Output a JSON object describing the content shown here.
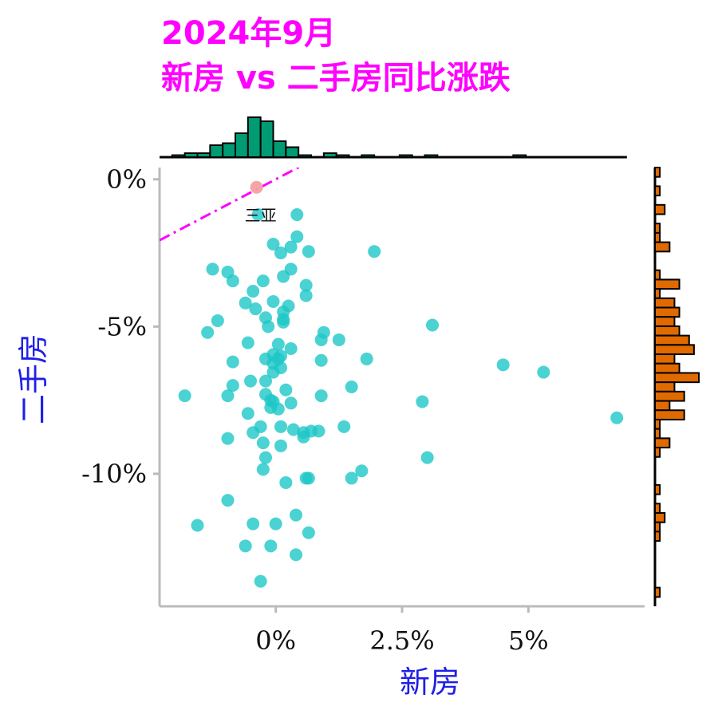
{
  "colors": {
    "title": "#ff00ff",
    "axis_title": "#1f1fe6",
    "points_normal": "#1ec7c7",
    "point_highlight": "#f4a0a0",
    "trend_line": "#ff00ff",
    "hist_top": "#009b73",
    "hist_right": "#e06a00",
    "axis_line": "#bbbbbb"
  },
  "title": {
    "line1": "2024年9月",
    "line2": "新房 vs 二手房同比涨跌"
  },
  "chart_data": {
    "type": "scatter",
    "title": "2024年9月 新房 vs 二手房同比涨跌",
    "xlabel": "新房",
    "ylabel": "二手房",
    "xlim": [
      -2.3,
      7.3
    ],
    "ylim": [
      -14.5,
      0.4
    ],
    "x_ticks": [
      0,
      2.5,
      5
    ],
    "x_tick_labels": [
      "0%",
      "2.5%",
      "5%"
    ],
    "y_ticks": [
      0,
      -5,
      -10
    ],
    "y_tick_labels": [
      "0%",
      "-5%",
      "-10%"
    ],
    "grid": false,
    "trend_line": {
      "style": "dash-dot",
      "intercept": 0,
      "slope": 0.9
    },
    "highlight_point": {
      "x": -0.38,
      "y": -0.27
    },
    "annotations": [
      {
        "text": "三亚",
        "x": -0.3,
        "y": -1.2
      }
    ],
    "points": [
      [
        -0.35,
        -1.2
      ],
      [
        0.42,
        -1.2
      ],
      [
        0.42,
        -1.95
      ],
      [
        -0.05,
        -2.2
      ],
      [
        0.3,
        -2.3
      ],
      [
        0.1,
        -2.5
      ],
      [
        0.65,
        -2.45
      ],
      [
        1.95,
        -2.45
      ],
      [
        -1.25,
        -3.05
      ],
      [
        -0.95,
        -3.15
      ],
      [
        0.3,
        -3.05
      ],
      [
        0.15,
        -3.3
      ],
      [
        -0.85,
        -3.45
      ],
      [
        -0.25,
        -3.45
      ],
      [
        0.6,
        -3.6
      ],
      [
        -0.45,
        -3.8
      ],
      [
        0.6,
        -3.95
      ],
      [
        -0.6,
        -4.2
      ],
      [
        -0.05,
        -4.15
      ],
      [
        0.25,
        -4.3
      ],
      [
        -0.4,
        -4.4
      ],
      [
        0.15,
        -4.5
      ],
      [
        -0.2,
        -4.7
      ],
      [
        0.15,
        -4.75
      ],
      [
        0.15,
        -4.85
      ],
      [
        -1.15,
        -4.8
      ],
      [
        -0.15,
        -5
      ],
      [
        3.1,
        -4.95
      ],
      [
        -1.35,
        -5.2
      ],
      [
        0.95,
        -5.2
      ],
      [
        0.9,
        -5.45
      ],
      [
        1.25,
        -5.45
      ],
      [
        -0.55,
        -5.55
      ],
      [
        0.05,
        -5.6
      ],
      [
        0.3,
        -5.75
      ],
      [
        -0.05,
        -5.95
      ],
      [
        0.1,
        -6
      ],
      [
        -0.2,
        -6.1
      ],
      [
        0.05,
        -6.1
      ],
      [
        1.8,
        -6.1
      ],
      [
        0.9,
        -6.15
      ],
      [
        -0.85,
        -6.2
      ],
      [
        -0.05,
        -6.25
      ],
      [
        0.1,
        -6.4
      ],
      [
        4.5,
        -6.3
      ],
      [
        5.3,
        -6.55
      ],
      [
        -0.05,
        -6.55
      ],
      [
        -0.5,
        -6.85
      ],
      [
        -0.2,
        -6.85
      ],
      [
        -0.85,
        -7
      ],
      [
        1.5,
        -7.05
      ],
      [
        0.2,
        -7.15
      ],
      [
        -1.8,
        -7.35
      ],
      [
        -0.95,
        -7.35
      ],
      [
        -0.2,
        -7.3
      ],
      [
        0.9,
        -7.35
      ],
      [
        -0.1,
        -7.5
      ],
      [
        -0.05,
        -7.55
      ],
      [
        2.9,
        -7.55
      ],
      [
        0.3,
        -7.6
      ],
      [
        -0.1,
        -7.75
      ],
      [
        0.05,
        -7.8
      ],
      [
        -0.55,
        -7.95
      ],
      [
        6.75,
        -8.1
      ],
      [
        -0.3,
        -8.4
      ],
      [
        0.1,
        -8.4
      ],
      [
        0.35,
        -8.5
      ],
      [
        1.35,
        -8.4
      ],
      [
        -0.45,
        -8.6
      ],
      [
        0.55,
        -8.6
      ],
      [
        0.7,
        -8.55
      ],
      [
        0.85,
        -8.55
      ],
      [
        -0.95,
        -8.8
      ],
      [
        0.55,
        -8.75
      ],
      [
        -0.25,
        -8.95
      ],
      [
        0.1,
        -9.05
      ],
      [
        -0.2,
        -9.45
      ],
      [
        3,
        -9.45
      ],
      [
        -0.25,
        -9.85
      ],
      [
        1.7,
        -9.9
      ],
      [
        1.5,
        -10.15
      ],
      [
        0.6,
        -10.15
      ],
      [
        0.65,
        -10.15
      ],
      [
        0.2,
        -10.3
      ],
      [
        -0.95,
        -10.9
      ],
      [
        0.4,
        -11.4
      ],
      [
        -1.55,
        -11.75
      ],
      [
        -0.45,
        -11.7
      ],
      [
        0,
        -11.7
      ],
      [
        0.65,
        -12
      ],
      [
        -0.6,
        -12.45
      ],
      [
        -0.1,
        -12.45
      ],
      [
        0.4,
        -12.75
      ],
      [
        -0.3,
        -13.65
      ]
    ],
    "x_histogram": {
      "bins": [
        -2.3,
        6.95
      ],
      "counts": [
        0,
        1,
        2,
        2,
        6,
        7,
        12,
        20,
        18,
        8,
        5,
        1,
        0,
        2,
        1,
        0,
        1,
        0,
        0,
        1,
        0,
        1,
        0,
        0,
        0,
        0,
        0,
        0,
        1,
        0,
        0,
        0,
        0,
        0,
        0,
        0,
        0
      ]
    },
    "y_histogram": {
      "bins": [
        0.4,
        -14.5
      ],
      "counts": [
        1,
        0,
        1,
        0,
        2,
        0,
        1,
        1,
        3,
        0,
        0,
        1,
        5,
        1,
        4,
        5,
        4,
        5,
        7,
        8,
        4,
        5,
        9,
        4,
        6,
        3,
        6,
        1,
        1,
        3,
        1,
        0,
        0,
        0,
        1,
        0,
        1,
        2,
        1,
        1,
        0,
        0,
        0,
        0,
        0,
        1,
        0
      ]
    }
  }
}
